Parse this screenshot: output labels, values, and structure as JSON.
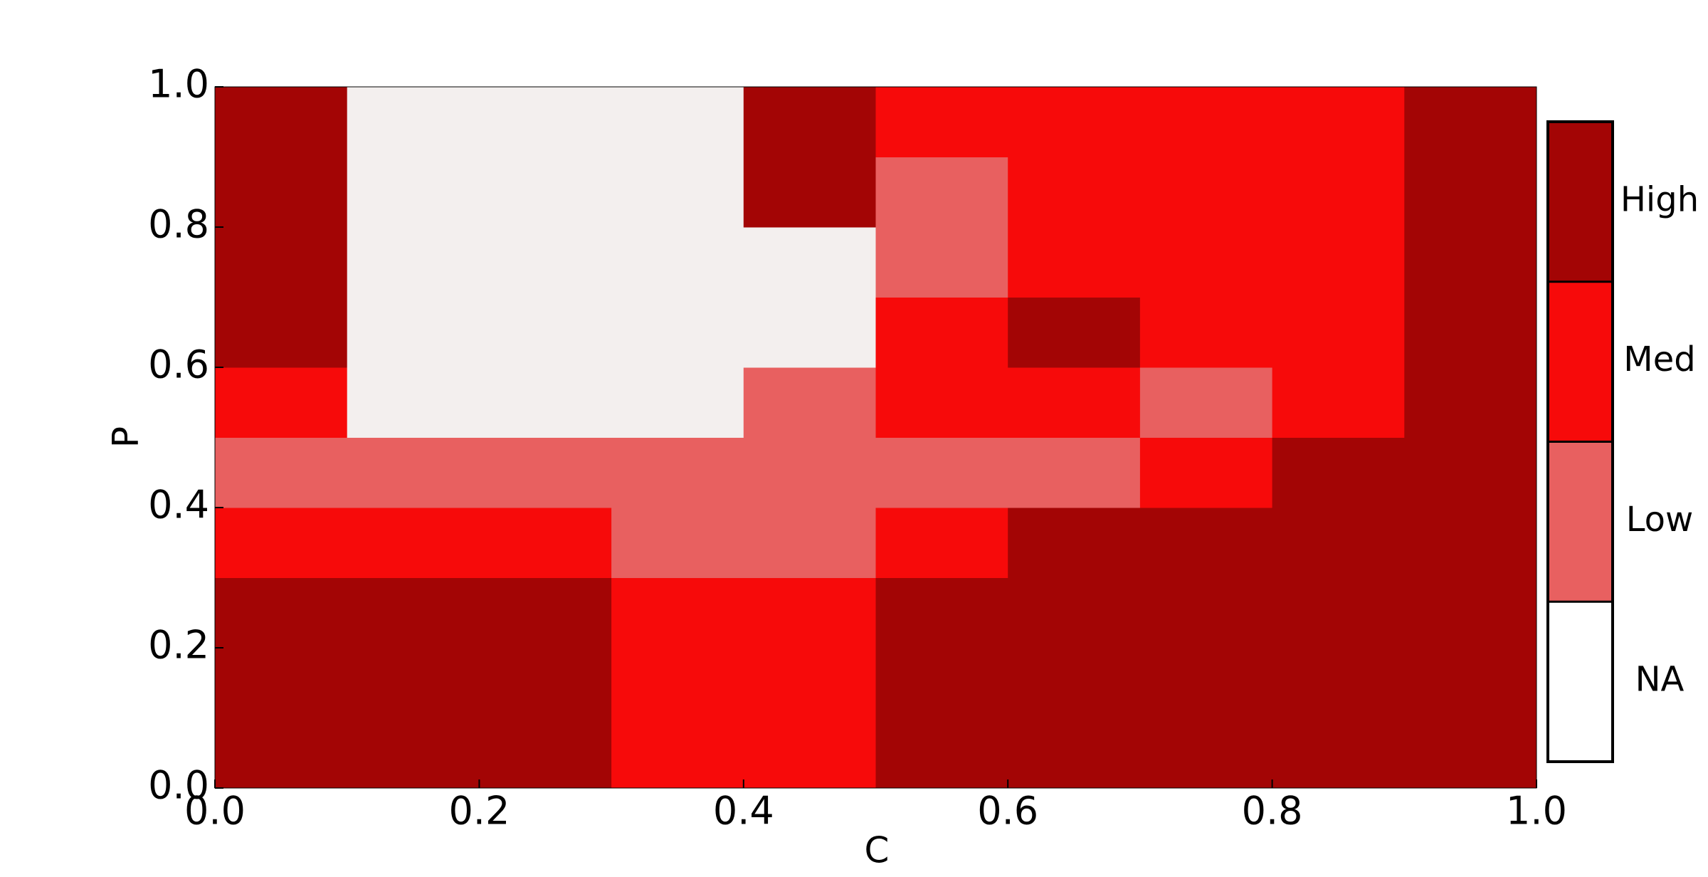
{
  "chart_data": {
    "type": "heatmap",
    "x_label": "C",
    "y_label": "P",
    "x": [
      0,
      0.1,
      0.2,
      0.3,
      0.4,
      0.5,
      0.6,
      0.7,
      0.8,
      0.9,
      1
    ],
    "y": [
      0,
      0.1,
      0.2,
      0.3,
      0.4,
      0.5,
      0.6,
      0.7,
      0.8,
      0.9,
      1
    ],
    "z": [
      [
        3,
        3,
        3,
        2,
        2,
        3,
        3,
        3,
        3,
        3
      ],
      [
        3,
        3,
        3,
        2,
        2,
        3,
        3,
        3,
        3,
        3
      ],
      [
        3,
        3,
        3,
        2,
        2,
        3,
        3,
        3,
        3,
        3
      ],
      [
        2,
        2,
        2,
        1,
        1,
        2,
        3,
        3,
        3,
        3
      ],
      [
        1,
        1,
        1,
        1,
        1,
        1,
        1,
        2,
        3,
        3
      ],
      [
        2,
        0,
        0,
        0,
        1,
        2,
        2,
        1,
        2,
        3
      ],
      [
        3,
        0,
        0,
        0,
        0,
        2,
        3,
        2,
        2,
        3
      ],
      [
        3,
        0,
        0,
        0,
        0,
        1,
        2,
        2,
        2,
        3
      ],
      [
        3,
        0,
        0,
        0,
        3,
        1,
        2,
        2,
        2,
        3
      ],
      [
        3,
        0,
        0,
        0,
        3,
        2,
        2,
        2,
        2,
        3
      ]
    ],
    "colors": [
      "#f3efee",
      "#e86060",
      "#f70a0a",
      "#a30505"
    ],
    "clim": [
      0,
      4
    ],
    "cticks": [
      {
        "value": 0,
        "label": "NA"
      },
      {
        "value": 1,
        "label": "Low"
      },
      {
        "value": 2,
        "label": "Med"
      },
      {
        "value": 3,
        "label": "High"
      }
    ],
    "xlim": [
      0,
      1
    ],
    "ylim": [
      0,
      1
    ],
    "xticks": [
      {
        "value": 0,
        "label": "0.0"
      },
      0.2,
      0.4,
      0.6,
      0.8,
      {
        "value": 1,
        "label": "1.0"
      }
    ],
    "yticks": [
      {
        "value": 0,
        "label": "0.0"
      },
      0.2,
      0.4,
      0.6,
      0.8,
      {
        "value": 1,
        "label": "1.0"
      }
    ]
  }
}
